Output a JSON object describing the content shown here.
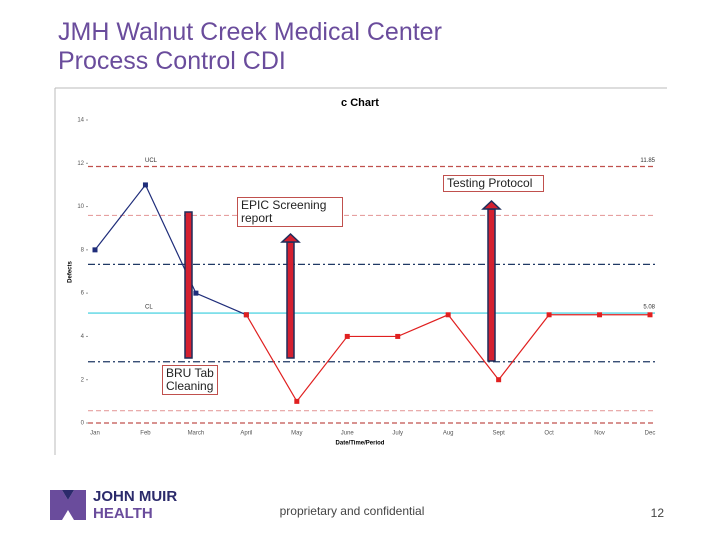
{
  "header": {
    "title": [
      "JMH Walnut Creek Medical Center",
      "Process Control CDI"
    ]
  },
  "chart_data": {
    "type": "line",
    "title": "c Chart",
    "x_label": "Date/Time/Period",
    "y_label": "Defects",
    "categories": [
      "Jan",
      "Feb",
      "March",
      "April",
      "May",
      "June",
      "July",
      "Aug",
      "Sept",
      "Oct",
      "Nov",
      "Dec"
    ],
    "series": [
      {
        "color": "#1f2d7a",
        "values": [
          8,
          11,
          6,
          5,
          null,
          null,
          null,
          null,
          null,
          null,
          null,
          null
        ]
      },
      {
        "color": "#e02020",
        "values": [
          null,
          null,
          null,
          5,
          1,
          4,
          4,
          5,
          2,
          5,
          5,
          5
        ]
      }
    ],
    "ylim": [
      0,
      14
    ],
    "yticks": [
      0,
      2,
      4,
      6,
      8,
      10,
      12,
      14
    ],
    "control_lines": [
      {
        "value": 11.85,
        "label": "UCL",
        "color": "#c0504d",
        "style": "dashed"
      },
      {
        "value": 9.59,
        "color": "#e6a0a0",
        "style": "dashed"
      },
      {
        "value": 7.33,
        "color": "#1f3864",
        "style": "dashdot"
      },
      {
        "value": 5.08,
        "label": "CL",
        "color": "#33ccdd",
        "style": "solid"
      },
      {
        "value": 2.83,
        "color": "#1f3864",
        "style": "dashdot"
      },
      {
        "value": 0.57,
        "color": "#e6a0a0",
        "style": "dashed"
      },
      {
        "value": 0,
        "color": "#c0504d",
        "style": "dashed"
      }
    ],
    "annotations": [
      "BRU Tab Cleaning",
      "EPIC Screening report",
      "Testing Protocol"
    ]
  },
  "footer": {
    "logo": [
      "JOHN MUIR",
      "HEALTH"
    ],
    "note": "proprietary and confidential",
    "page": 12
  }
}
